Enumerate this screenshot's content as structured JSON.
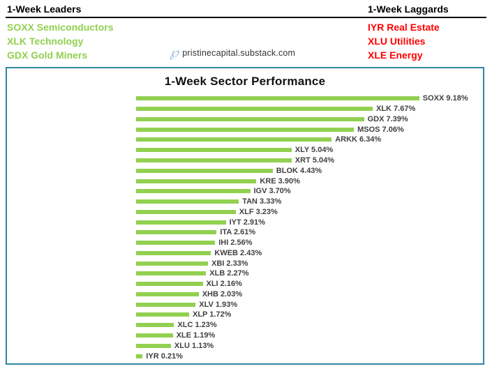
{
  "header": {
    "leaders": {
      "title": "1-Week Leaders",
      "items": [
        "SOXX Semiconductors",
        "XLK Technology",
        "GDX Gold Miners"
      ]
    },
    "laggards": {
      "title": "1-Week Laggards",
      "items": [
        "IYR Real Estate",
        "XLU Utilities",
        "XLE Energy"
      ]
    }
  },
  "watermark": {
    "icon": "℘",
    "text": "pristinecapital.substack.com"
  },
  "chart_data": {
    "type": "bar",
    "orientation": "horizontal",
    "title": "1-Week Sector Performance",
    "categories": [
      "SOXX",
      "XLK",
      "GDX",
      "MSOS",
      "ARKK",
      "XLY",
      "XRT",
      "BLOK",
      "KRE",
      "IGV",
      "TAN",
      "XLF",
      "IYT",
      "ITA",
      "IHI",
      "KWEB",
      "XBI",
      "XLB",
      "XLI",
      "XHB",
      "XLV",
      "XLP",
      "XLC",
      "XLE",
      "XLU",
      "IYR"
    ],
    "values": [
      9.18,
      7.67,
      7.39,
      7.06,
      6.34,
      5.04,
      5.04,
      4.43,
      3.9,
      3.7,
      3.33,
      3.23,
      2.91,
      2.61,
      2.56,
      2.43,
      2.33,
      2.27,
      2.16,
      2.03,
      1.93,
      1.72,
      1.23,
      1.19,
      1.13,
      0.21
    ],
    "labels": [
      "SOXX 9.18%",
      "XLK 7.67%",
      "GDX 7.39%",
      "MSOS 7.06%",
      "ARKK 6.34%",
      "XLY 5.04%",
      "XRT 5.04%",
      "BLOK 4.43%",
      "KRE 3.90%",
      "IGV 3.70%",
      "TAN 3.33%",
      "XLF 3.23%",
      "IYT 2.91%",
      "ITA 2.61%",
      "IHI 2.56%",
      "KWEB 2.43%",
      "XBI 2.33%",
      "XLB 2.27%",
      "XLI 2.16%",
      "XHB 2.03%",
      "XLV 1.93%",
      "XLP 1.72%",
      "XLC 1.23%",
      "XLE 1.19%",
      "XLU 1.13%",
      "IYR 0.21%"
    ],
    "xlim": [
      0,
      10
    ],
    "grid": false,
    "legend": false,
    "bar_color": "#92D050",
    "data_label_position": "outside-end"
  },
  "colors": {
    "leaders_text": "#92D050",
    "laggards_text": "#FF0000",
    "bar": "#92D050",
    "bar_label": "#404040",
    "box_border": "#31859C",
    "header_divider": "#000000",
    "watermark_glyph": "#a3bedb"
  }
}
